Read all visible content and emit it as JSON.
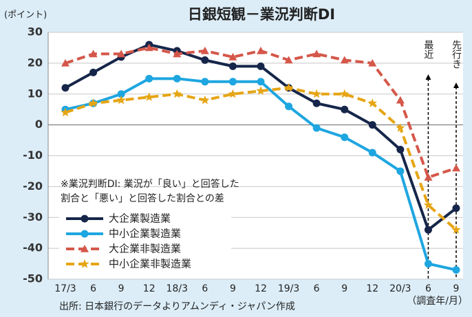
{
  "chart_data": {
    "type": "line",
    "title": "日銀短観－業況判断DI",
    "y_axis_label": "(ポイント)",
    "x_axis_label": "（調査年/月）",
    "source": "出所: 日本銀行のデータよりアムンディ・ジャパン作成",
    "note": [
      "※業況判断DI: 業況が「良い」と回答した",
      "割合と「悪い」と回答した割合との差"
    ],
    "annotations": [
      "最近",
      "先行き"
    ],
    "categories": [
      "17/3",
      "6",
      "9",
      "12",
      "18/3",
      "6",
      "9",
      "12",
      "19/3",
      "6",
      "9",
      "12",
      "20/3",
      "6",
      "9"
    ],
    "series": [
      {
        "name": "大企業製造業",
        "color": "#16264a",
        "marker": "circle",
        "dashed": false,
        "values": [
          12,
          17,
          22,
          26,
          24,
          21,
          19,
          19,
          12,
          7,
          5,
          0,
          -8,
          -34,
          -27
        ]
      },
      {
        "name": "中小企業製造業",
        "color": "#1ea6e0",
        "marker": "circle",
        "dashed": false,
        "values": [
          5,
          7,
          10,
          15,
          15,
          14,
          14,
          14,
          6,
          -1,
          -4,
          -9,
          -15,
          -45,
          -47
        ]
      },
      {
        "name": "大企業非製造業",
        "color": "#d5574a",
        "marker": "triangle",
        "dashed": true,
        "values": [
          20,
          23,
          23,
          25,
          23,
          24,
          22,
          24,
          21,
          23,
          21,
          20,
          8,
          -17,
          -14
        ]
      },
      {
        "name": "中小企業非製造業",
        "color": "#e6a514",
        "marker": "star",
        "dashed": true,
        "values": [
          4,
          7,
          8,
          9,
          10,
          8,
          10,
          11,
          12,
          10,
          10,
          7,
          -1,
          -26,
          -34
        ]
      }
    ],
    "ylim": [
      -50,
      30
    ],
    "yticks": [
      -50,
      -40,
      -30,
      -20,
      -10,
      0,
      10,
      20,
      30
    ],
    "grid": true
  }
}
